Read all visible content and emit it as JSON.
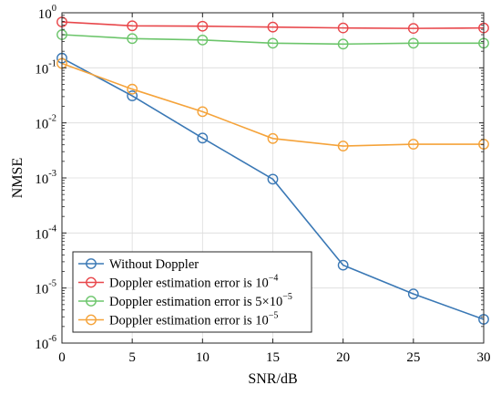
{
  "chart_data": {
    "type": "line",
    "title": "",
    "xlabel": "SNR/dB",
    "ylabel": "NMSE",
    "y_scale": "log",
    "xlim": [
      0,
      30
    ],
    "ylim": [
      1e-06,
      1
    ],
    "grid": true,
    "legend_position": "bottom-left",
    "marker": "circle",
    "x": [
      0,
      5,
      10,
      15,
      20,
      25,
      30
    ],
    "x_tick_labels": [
      "0",
      "5",
      "10",
      "15",
      "20",
      "25",
      "30"
    ],
    "y_tick_labels": [
      {
        "base": "10",
        "exp": "-6",
        "value": 1e-06
      },
      {
        "base": "10",
        "exp": "-5",
        "value": 1e-05
      },
      {
        "base": "10",
        "exp": "-4",
        "value": 0.0001
      },
      {
        "base": "10",
        "exp": "-3",
        "value": 0.001
      },
      {
        "base": "10",
        "exp": "-2",
        "value": 0.01
      },
      {
        "base": "10",
        "exp": "-1",
        "value": 0.1
      },
      {
        "base": "10",
        "exp": "0",
        "value": 1
      }
    ],
    "series": [
      {
        "name": "Without Doppler",
        "name_parts": [
          {
            "text": "Without Doppler",
            "sup": false
          }
        ],
        "color": "#3a78b5",
        "values": [
          0.15,
          0.031,
          0.0053,
          0.00095,
          2.6e-05,
          7.8e-06,
          2.7e-06
        ]
      },
      {
        "name": "Doppler estimation error is 10−4",
        "name_parts": [
          {
            "text": "Doppler estimation error is 10",
            "sup": false
          },
          {
            "text": "−4",
            "sup": true
          }
        ],
        "color": "#e8474b",
        "values": [
          0.68,
          0.58,
          0.57,
          0.55,
          0.53,
          0.52,
          0.53
        ]
      },
      {
        "name": "Doppler estimation error is 5×10−5",
        "name_parts": [
          {
            "text": "Doppler estimation error is 5×10",
            "sup": false
          },
          {
            "text": "−5",
            "sup": true
          }
        ],
        "color": "#6cc56b",
        "values": [
          0.4,
          0.34,
          0.32,
          0.28,
          0.27,
          0.28,
          0.28
        ]
      },
      {
        "name": "Doppler estimation error is 10−5",
        "name_parts": [
          {
            "text": "Doppler estimation error is 10",
            "sup": false
          },
          {
            "text": "−5",
            "sup": true
          }
        ],
        "color": "#f5a33a",
        "values": [
          0.12,
          0.041,
          0.016,
          0.0052,
          0.0038,
          0.0041,
          0.0041
        ]
      }
    ]
  }
}
